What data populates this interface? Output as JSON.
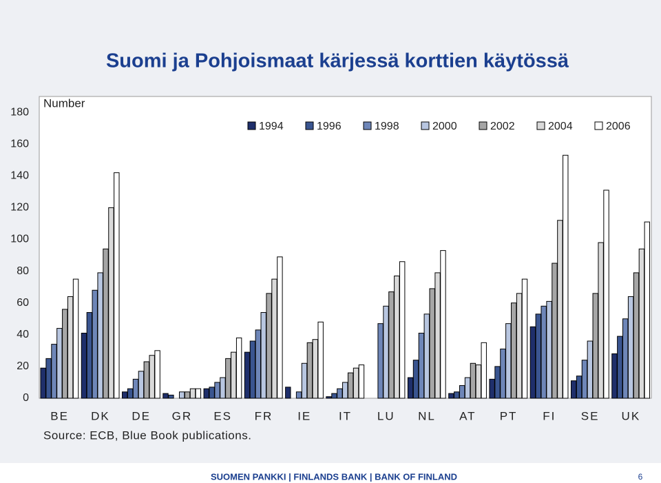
{
  "chart_data": {
    "type": "bar",
    "title": "Suomi ja Pohjoismaat kärjessä korttien käytössä",
    "y_label": "Number",
    "source": "Source: ECB, Blue Book publications.",
    "categories": [
      "BE",
      "DK",
      "DE",
      "GR",
      "ES",
      "FR",
      "IE",
      "IT",
      "LU",
      "NL",
      "AT",
      "PT",
      "FI",
      "SE",
      "UK"
    ],
    "series": [
      {
        "name": "1994",
        "color": "#1f2f6b",
        "values": [
          19,
          41,
          4,
          3,
          6,
          29,
          7,
          1,
          null,
          13,
          3,
          12,
          45,
          11,
          28
        ]
      },
      {
        "name": "1996",
        "color": "#3a5590",
        "values": [
          25,
          54,
          6,
          2,
          7,
          36,
          null,
          3,
          null,
          24,
          4,
          20,
          53,
          14,
          39
        ]
      },
      {
        "name": "1998",
        "color": "#6e86b8",
        "values": [
          34,
          68,
          12,
          null,
          10,
          43,
          4,
          6,
          47,
          41,
          8,
          31,
          58,
          24,
          50
        ]
      },
      {
        "name": "2000",
        "color": "#b8c6e0",
        "values": [
          44,
          79,
          17,
          4,
          13,
          54,
          22,
          10,
          58,
          53,
          13,
          47,
          61,
          36,
          64
        ]
      },
      {
        "name": "2002",
        "color": "#a6a6a6",
        "values": [
          56,
          94,
          23,
          4,
          25,
          66,
          35,
          16,
          67,
          69,
          22,
          60,
          85,
          66,
          79
        ]
      },
      {
        "name": "2004",
        "color": "#d9d9d9",
        "values": [
          64,
          120,
          27,
          6,
          29,
          75,
          37,
          19,
          77,
          79,
          21,
          66,
          112,
          98,
          94
        ]
      },
      {
        "name": "2006",
        "color": "#ffffff",
        "values": [
          75,
          142,
          30,
          6,
          38,
          89,
          48,
          21,
          86,
          93,
          35,
          75,
          153,
          131,
          111
        ]
      }
    ],
    "ylim": [
      0,
      190
    ],
    "yticks": [
      0,
      20,
      40,
      60,
      80,
      100,
      120,
      140,
      160,
      180
    ],
    "grid": false
  },
  "footer": {
    "text": "SUOMEN PANKKI | FINLANDS BANK | BANK OF FINLAND",
    "page": "6"
  }
}
